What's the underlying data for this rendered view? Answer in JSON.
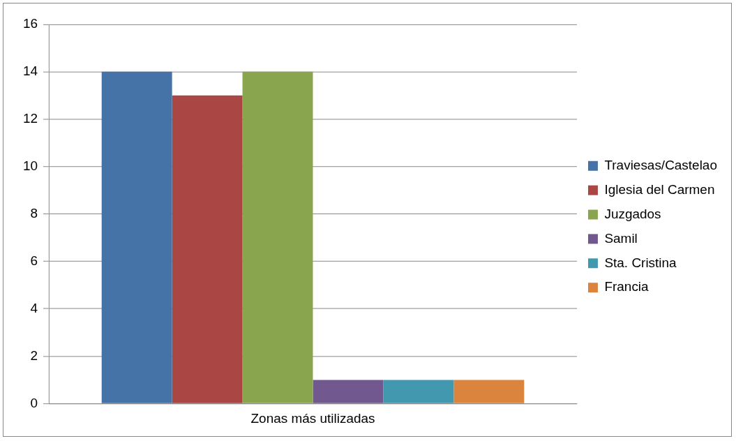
{
  "chart_data": {
    "type": "bar",
    "categories": [
      "Zonas más utilizadas"
    ],
    "series": [
      {
        "name": "Traviesas/Castelao",
        "color": "#4572a7",
        "values": [
          14
        ]
      },
      {
        "name": "Iglesia del Carmen",
        "color": "#aa4643",
        "values": [
          13
        ]
      },
      {
        "name": "Juzgados",
        "color": "#89a54e",
        "values": [
          14
        ]
      },
      {
        "name": "Samil",
        "color": "#71588f",
        "values": [
          1
        ]
      },
      {
        "name": "Sta. Cristina",
        "color": "#4198af",
        "values": [
          1
        ]
      },
      {
        "name": "Francia",
        "color": "#db843d",
        "values": [
          1
        ]
      }
    ],
    "ylim": [
      0,
      16
    ],
    "yticks": [
      0,
      2,
      4,
      6,
      8,
      10,
      12,
      14,
      16
    ],
    "grid": "y",
    "legend": "right"
  }
}
